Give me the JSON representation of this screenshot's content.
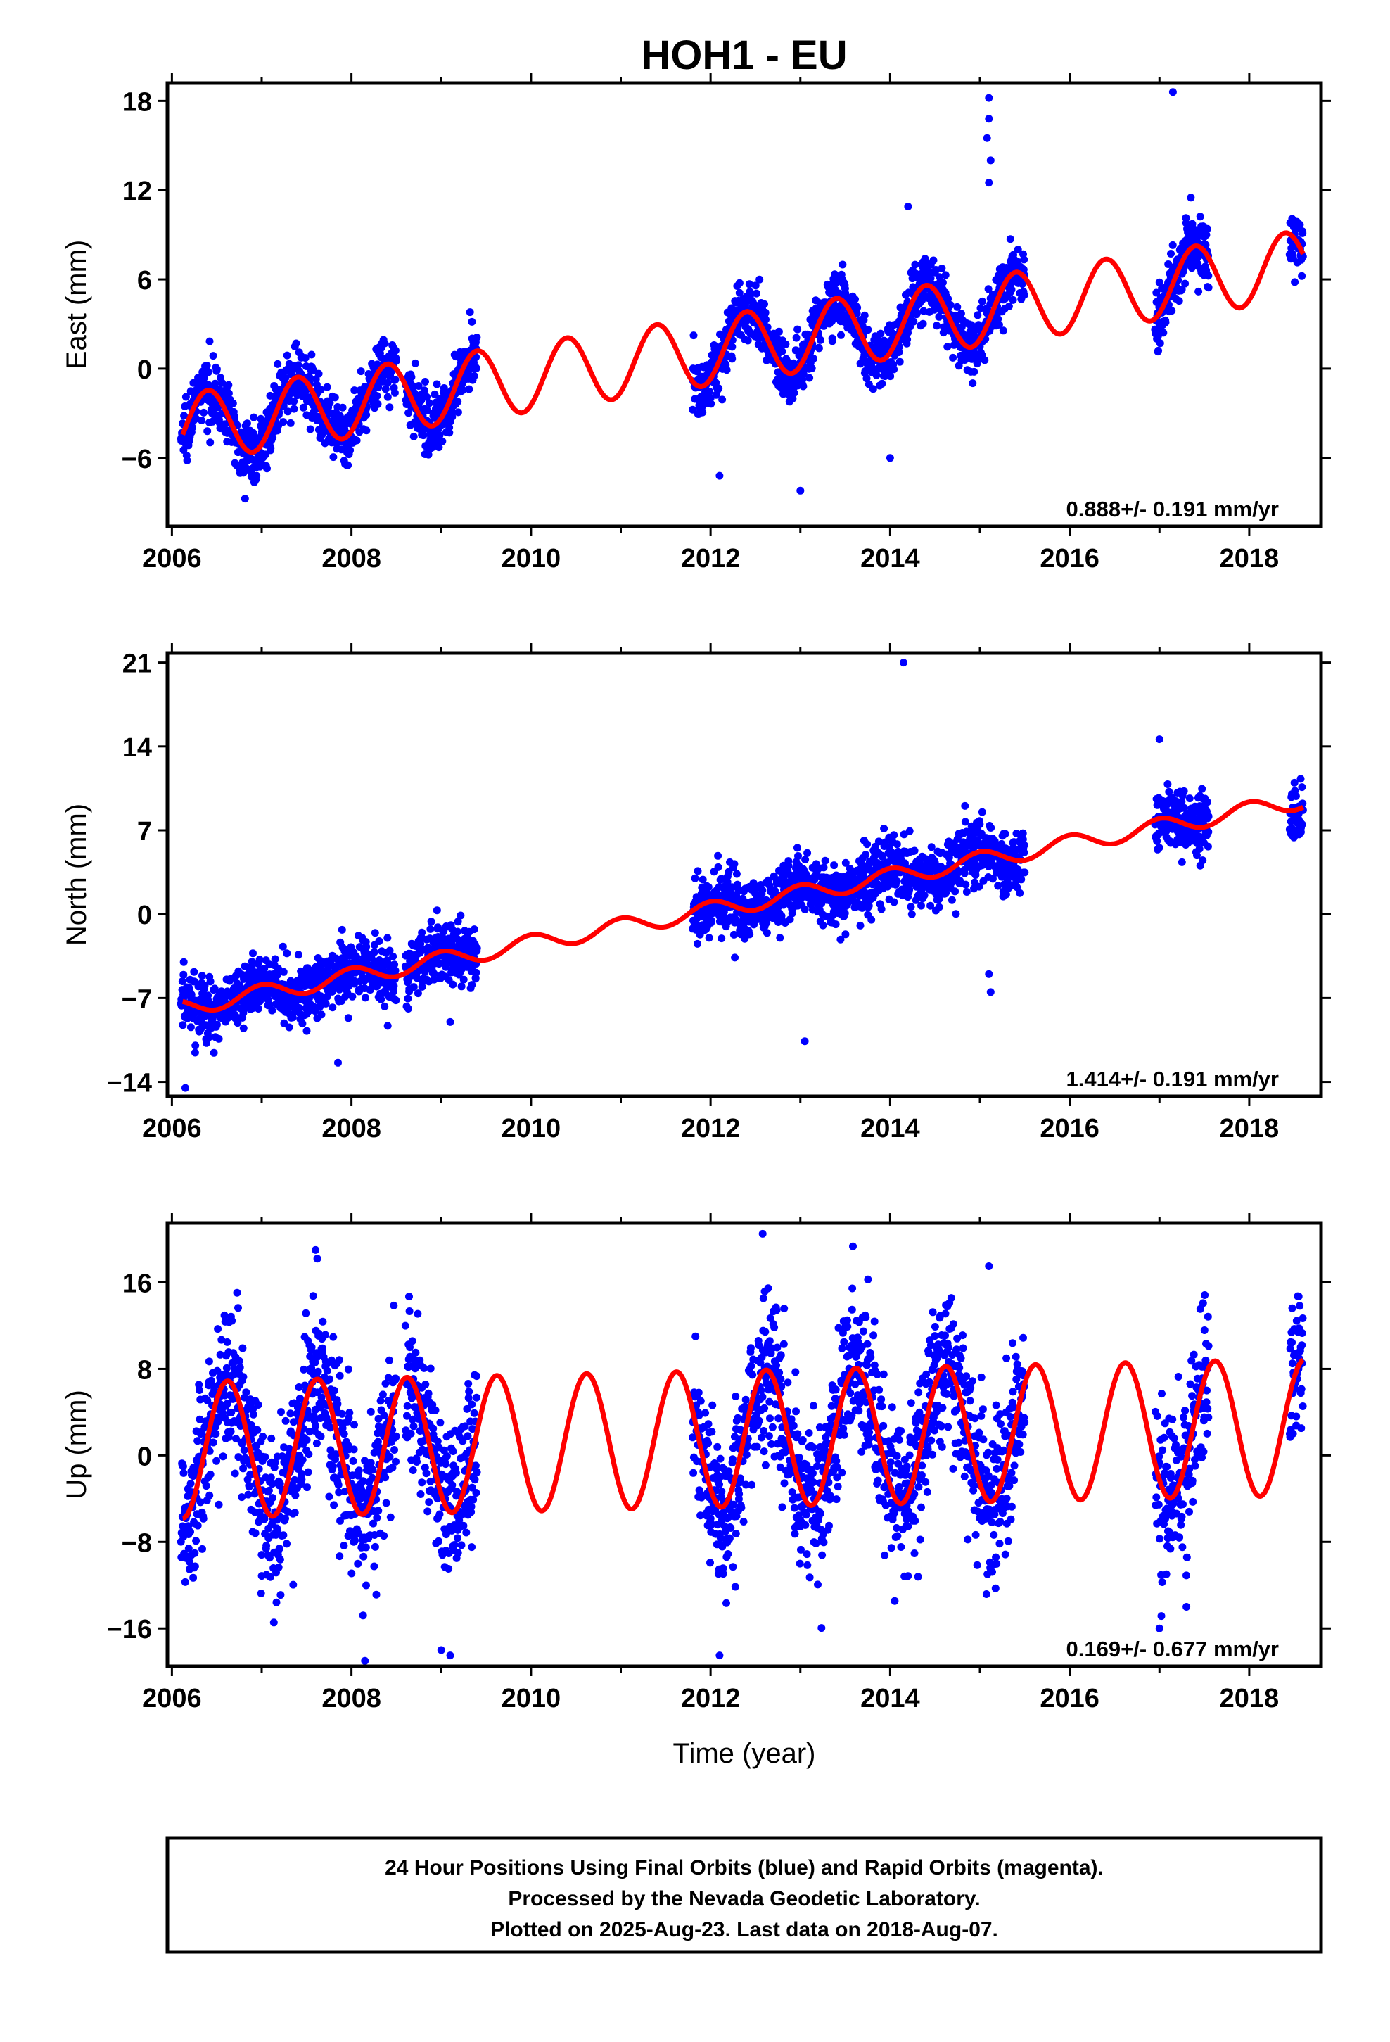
{
  "title": "HOH1 - EU",
  "xlabel": "Time (year)",
  "footer": {
    "lines": [
      "24 Hour Positions Using Final Orbits (blue) and Rapid Orbits (magenta).",
      "Processed by the Nevada Geodetic Laboratory.",
      "Plotted on 2025-Aug-23. Last data on 2018-Aug-07."
    ]
  },
  "colors": {
    "points": "#0000ff",
    "model": "#ff0000",
    "frame": "#000000"
  },
  "chart_data": [
    {
      "type": "scatter",
      "component": "east",
      "ylabel": "East (mm)",
      "rate": "0.888+/- 0.191 mm/yr",
      "xlim": [
        2005.95,
        2018.8
      ],
      "ylim": [
        -10.6,
        19.2
      ],
      "xticks": [
        2006,
        2008,
        2010,
        2012,
        2014,
        2016,
        2018
      ],
      "yticks": [
        18,
        12,
        6,
        0,
        -6
      ],
      "ytick_labels": [
        "18",
        "12",
        "6",
        "0",
        "−6"
      ],
      "data_segments": [
        [
          2006.1,
          2006.9
        ],
        [
          2006.9,
          2007.4
        ],
        [
          2007.4,
          2008.5
        ],
        [
          2008.6,
          2009.4
        ],
        [
          2011.8,
          2015.5
        ],
        [
          2016.95,
          2017.55
        ],
        [
          2018.45,
          2018.6
        ]
      ],
      "model": {
        "type": "line",
        "description": "linear trend plus annual sinusoid",
        "x_start": 2006.12,
        "x_end": 2018.6,
        "y_start": -4.0,
        "y_end": 7.0,
        "annual_amplitude": 2.3,
        "annual_phase_peak": 0.4
      },
      "noise_sd": 1.0,
      "outliers": [
        {
          "x": 2015.1,
          "y": 18.2
        },
        {
          "x": 2015.1,
          "y": 16.8
        },
        {
          "x": 2015.08,
          "y": 15.5
        },
        {
          "x": 2015.12,
          "y": 14.0
        },
        {
          "x": 2015.1,
          "y": 12.5
        },
        {
          "x": 2017.15,
          "y": 18.6
        },
        {
          "x": 2017.35,
          "y": 11.5
        },
        {
          "x": 2014.2,
          "y": 10.9
        },
        {
          "x": 2013.0,
          "y": -8.2
        },
        {
          "x": 2012.1,
          "y": -7.2
        },
        {
          "x": 2014.0,
          "y": -6.0
        }
      ]
    },
    {
      "type": "scatter",
      "component": "north",
      "ylabel": "North (mm)",
      "rate": "1.414+/- 0.191 mm/yr",
      "xlim": [
        2005.95,
        2018.8
      ],
      "ylim": [
        -15.2,
        21.8
      ],
      "xticks": [
        2006,
        2008,
        2010,
        2012,
        2014,
        2016,
        2018
      ],
      "yticks": [
        21,
        14,
        7,
        0,
        -7,
        -14
      ],
      "ytick_labels": [
        "21",
        "14",
        "7",
        "0",
        "−7",
        "−14"
      ],
      "data_segments": [
        [
          2006.1,
          2006.9
        ],
        [
          2006.9,
          2007.4
        ],
        [
          2007.4,
          2008.5
        ],
        [
          2008.6,
          2009.4
        ],
        [
          2011.8,
          2015.5
        ],
        [
          2016.95,
          2017.55
        ],
        [
          2018.45,
          2018.6
        ]
      ],
      "model": {
        "type": "line",
        "description": "linear trend plus annual sinusoid",
        "x_start": 2006.12,
        "x_end": 2018.6,
        "y_start": -7.8,
        "y_end": 9.5,
        "annual_amplitude": 0.7,
        "annual_phase_peak": 0.0
      },
      "noise_sd": 1.3,
      "outliers": [
        {
          "x": 2014.15,
          "y": 21.0
        },
        {
          "x": 2006.15,
          "y": -14.5
        },
        {
          "x": 2007.85,
          "y": -12.4
        },
        {
          "x": 2013.05,
          "y": -10.6
        },
        {
          "x": 2015.12,
          "y": -6.5
        },
        {
          "x": 2015.1,
          "y": -5.0
        },
        {
          "x": 2009.1,
          "y": -9.0
        },
        {
          "x": 2017.0,
          "y": 14.6
        }
      ]
    },
    {
      "type": "scatter",
      "component": "up",
      "ylabel": "Up (mm)",
      "rate": "0.169+/- 0.677 mm/yr",
      "xlim": [
        2005.95,
        2018.8
      ],
      "ylim": [
        -19.5,
        21.5
      ],
      "xticks": [
        2006,
        2008,
        2010,
        2012,
        2014,
        2016,
        2018
      ],
      "yticks": [
        16,
        8,
        0,
        -8,
        -16
      ],
      "ytick_labels": [
        "16",
        "8",
        "0",
        "−8",
        "−16"
      ],
      "data_segments": [
        [
          2006.1,
          2006.9
        ],
        [
          2006.9,
          2007.4
        ],
        [
          2007.4,
          2008.5
        ],
        [
          2008.6,
          2009.4
        ],
        [
          2011.8,
          2015.5
        ],
        [
          2016.95,
          2017.55
        ],
        [
          2018.45,
          2018.6
        ]
      ],
      "model": {
        "type": "line",
        "description": "linear trend plus annual sinusoid",
        "x_start": 2006.12,
        "x_end": 2018.6,
        "y_start": 0.5,
        "y_end": 2.6,
        "annual_amplitude": 6.3,
        "annual_phase_peak": 0.62
      },
      "noise_sd": 3.6,
      "outliers": [
        {
          "x": 2012.58,
          "y": 20.5
        },
        {
          "x": 2007.6,
          "y": 19.0
        },
        {
          "x": 2007.62,
          "y": 18.2
        },
        {
          "x": 2015.1,
          "y": 17.5
        },
        {
          "x": 2012.1,
          "y": -18.5
        },
        {
          "x": 2008.15,
          "y": -19.0
        },
        {
          "x": 2009.0,
          "y": -18.0
        },
        {
          "x": 2009.1,
          "y": -18.5
        },
        {
          "x": 2017.0,
          "y": -16.0
        },
        {
          "x": 2017.3,
          "y": -14.0
        }
      ]
    }
  ]
}
